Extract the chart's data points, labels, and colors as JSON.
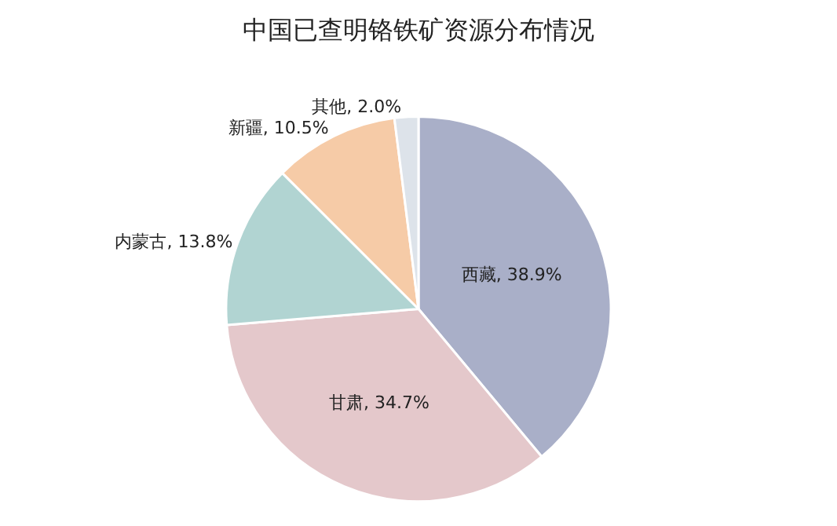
{
  "chart_data": {
    "type": "pie",
    "title": "中国已查明铬铁矿资源分布情况",
    "categories": [
      "西藏",
      "甘肃",
      "内蒙古",
      "新疆",
      "其他"
    ],
    "values": [
      38.9,
      34.7,
      13.8,
      10.5,
      2.0
    ],
    "colors": [
      "#a9afc8",
      "#e4c8cb",
      "#b1d4d2",
      "#f6cba7",
      "#dde3ea"
    ],
    "value_labels": [
      "38.9%",
      "34.7%",
      "13.8%",
      "10.5%",
      "2.0%"
    ],
    "legend": false
  }
}
